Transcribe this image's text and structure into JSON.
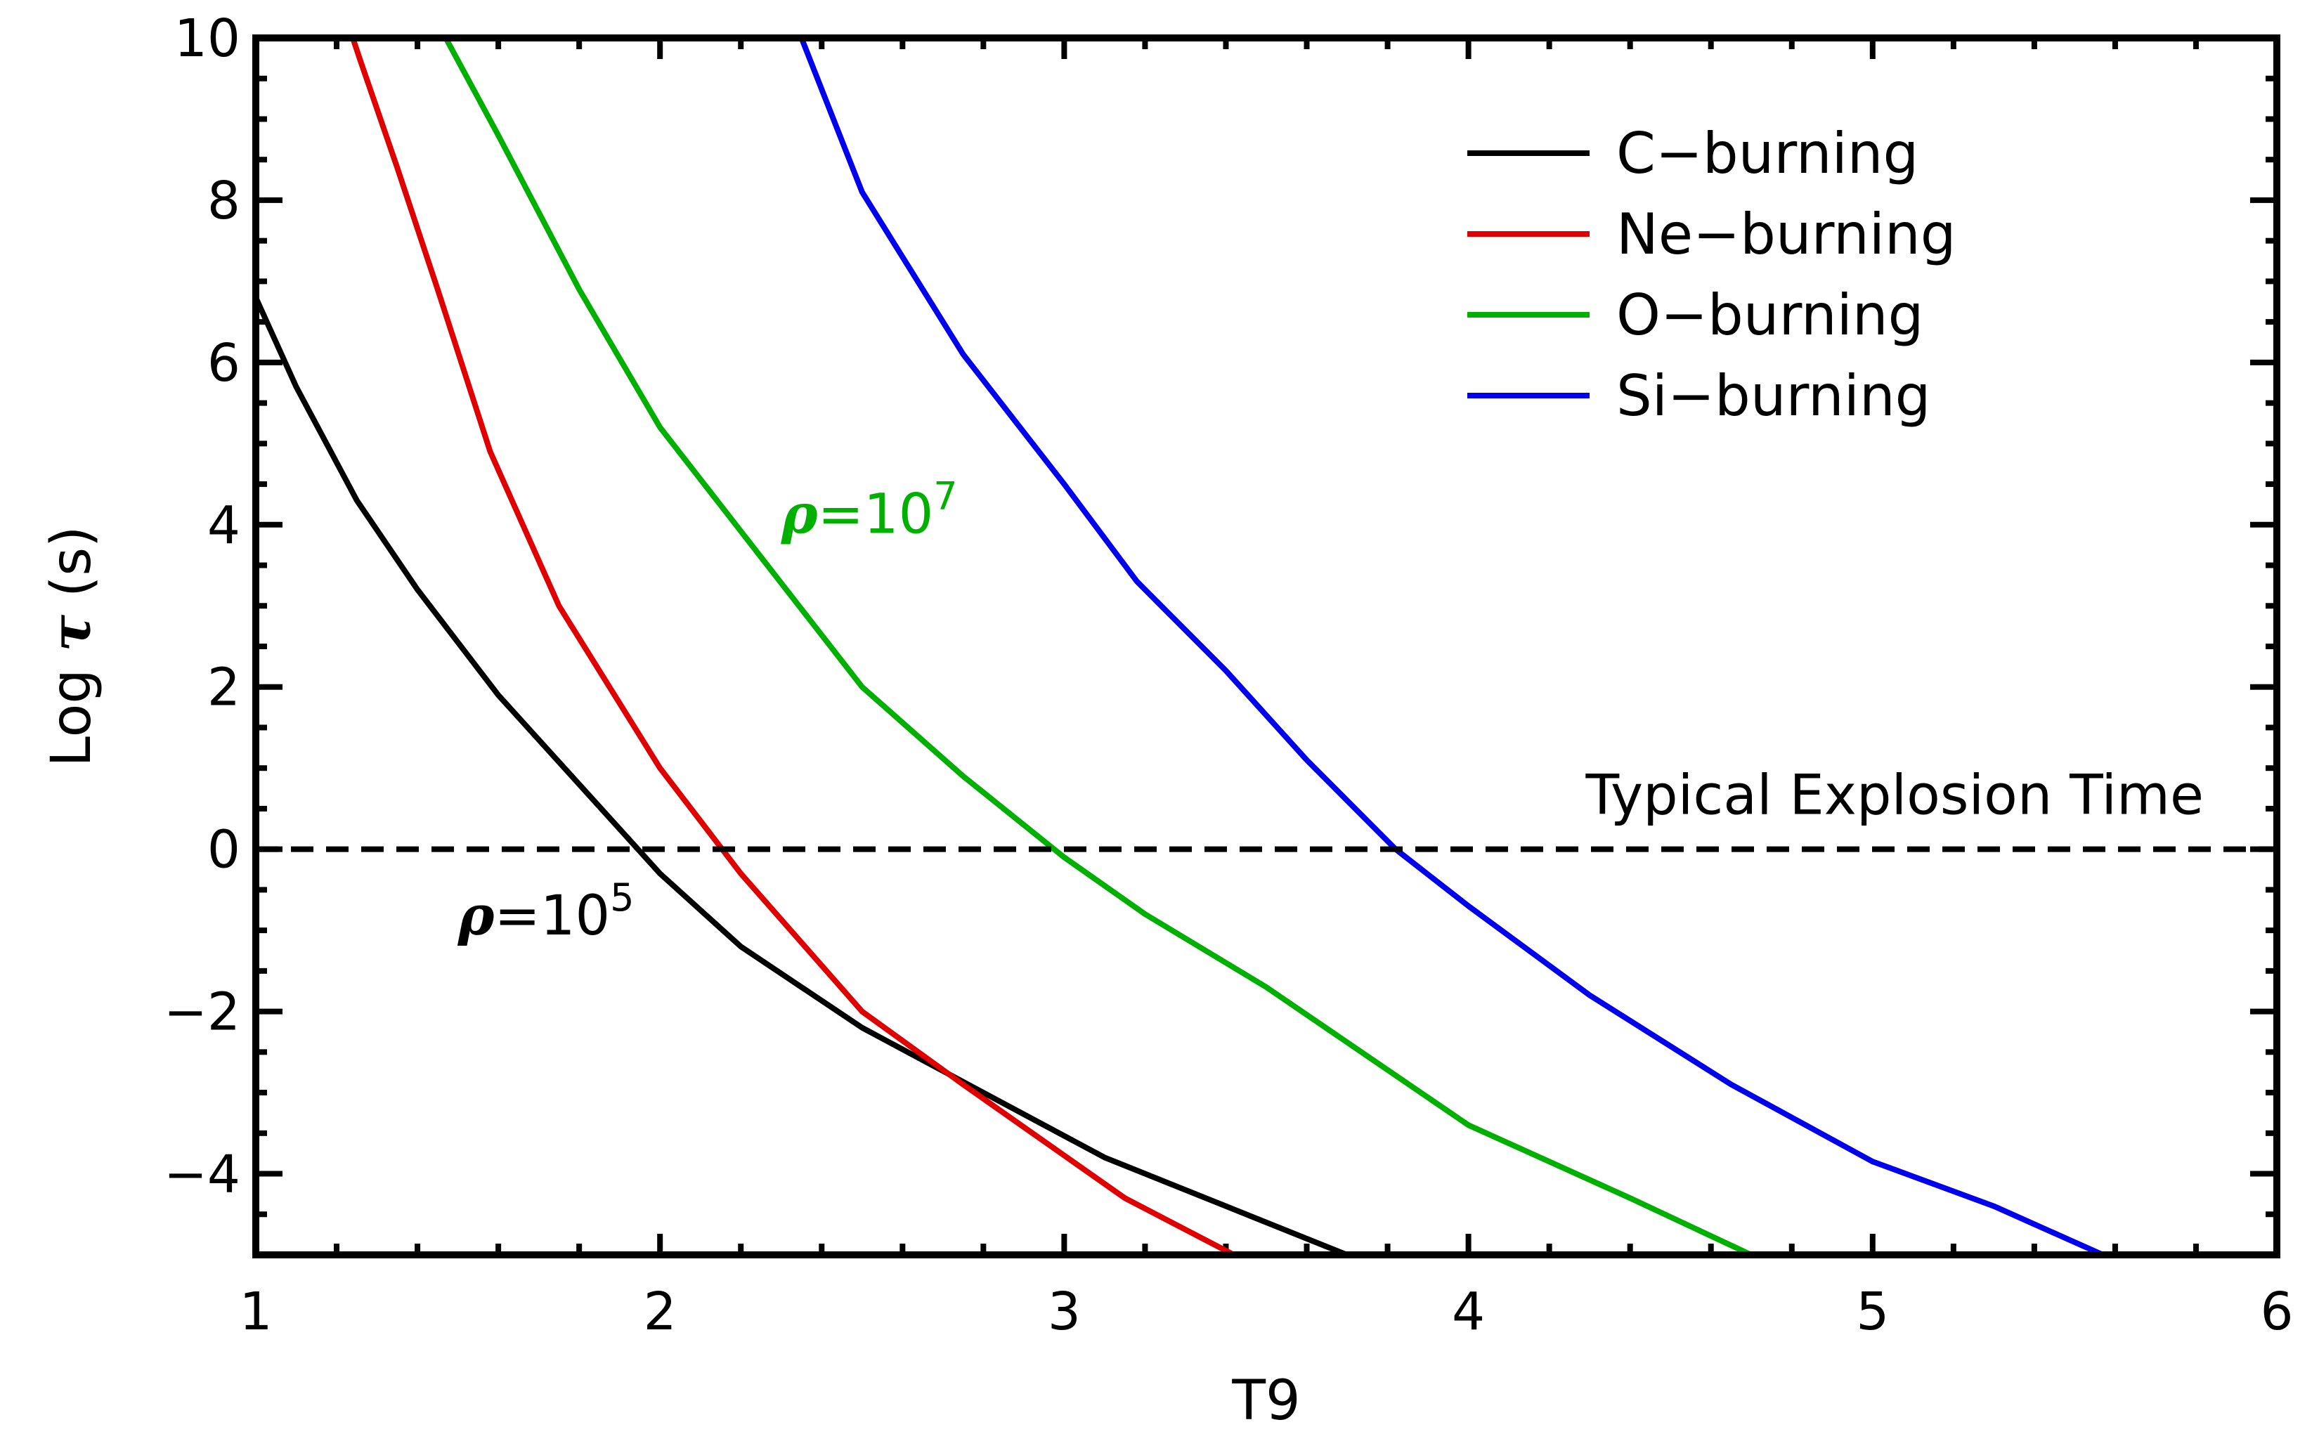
{
  "chart_data": {
    "type": "line",
    "title": "",
    "xlabel": "T9",
    "ylabel": {
      "prefix": "Log ",
      "symbol": "τ",
      "suffix": " (s)"
    },
    "xlim": [
      1,
      6
    ],
    "ylim": [
      -5,
      10
    ],
    "x_major_ticks": [
      1,
      2,
      3,
      4,
      5,
      6
    ],
    "x_tick_labels": [
      "1",
      "2",
      "3",
      "4",
      "5",
      "6"
    ],
    "x_minor_step": 0.2,
    "y_major_ticks": [
      -4,
      -2,
      0,
      2,
      4,
      6,
      8,
      10
    ],
    "y_tick_labels": [
      "−4",
      "−2",
      "0",
      "2",
      "4",
      "6",
      "8",
      "10"
    ],
    "y_minor_step": 0.5,
    "grid": false,
    "legend_position": "top-right",
    "series": [
      {
        "name": "C−burning",
        "color": "#000000",
        "x": [
          1.0,
          1.1,
          1.25,
          1.4,
          1.6,
          1.8,
          2.0,
          2.2,
          2.5,
          2.8,
          3.1,
          3.4,
          3.7
        ],
        "y": [
          6.8,
          5.7,
          4.3,
          3.2,
          1.9,
          0.8,
          -0.3,
          -1.2,
          -2.2,
          -3.0,
          -3.8,
          -4.4,
          -5.0
        ]
      },
      {
        "name": "Ne−burning",
        "color": "#e00000",
        "x": [
          1.24,
          1.26,
          1.35,
          1.45,
          1.58,
          1.75,
          2.0,
          2.2,
          2.5,
          2.75,
          3.15,
          3.42
        ],
        "y": [
          10.0,
          9.7,
          8.4,
          6.9,
          4.9,
          3.0,
          1.0,
          -0.3,
          -2.0,
          -2.9,
          -4.3,
          -5.0
        ]
      },
      {
        "name": "O−burning",
        "color": "#00b000",
        "x": [
          1.47,
          1.6,
          1.8,
          2.0,
          2.25,
          2.5,
          2.75,
          3.0,
          3.2,
          3.5,
          4.0,
          4.4,
          4.7
        ],
        "y": [
          10.0,
          8.8,
          6.9,
          5.2,
          3.6,
          2.0,
          0.9,
          -0.1,
          -0.8,
          -1.7,
          -3.4,
          -4.3,
          -5.0
        ]
      },
      {
        "name": "Si−burning",
        "color": "#0000ee",
        "x": [
          2.35,
          2.5,
          2.75,
          3.0,
          3.18,
          3.4,
          3.6,
          3.82,
          4.0,
          4.3,
          4.65,
          5.0,
          5.3,
          5.57
        ],
        "y": [
          10.0,
          8.1,
          6.1,
          4.5,
          3.3,
          2.2,
          1.1,
          0.0,
          -0.7,
          -1.8,
          -2.9,
          -3.85,
          -4.4,
          -5.0
        ]
      }
    ],
    "reference_line": {
      "y": 0,
      "style": "dashed",
      "label": "Typical Explosion Time"
    },
    "annotations": [
      {
        "symbol": "ρ",
        "eq": "=10",
        "exp": "5",
        "x": 1.5,
        "y": -1.05,
        "color": "#000000"
      },
      {
        "symbol": "ρ",
        "eq": "=10",
        "exp": "7",
        "x": 2.3,
        "y": 3.9,
        "color": "#00b000"
      }
    ]
  }
}
